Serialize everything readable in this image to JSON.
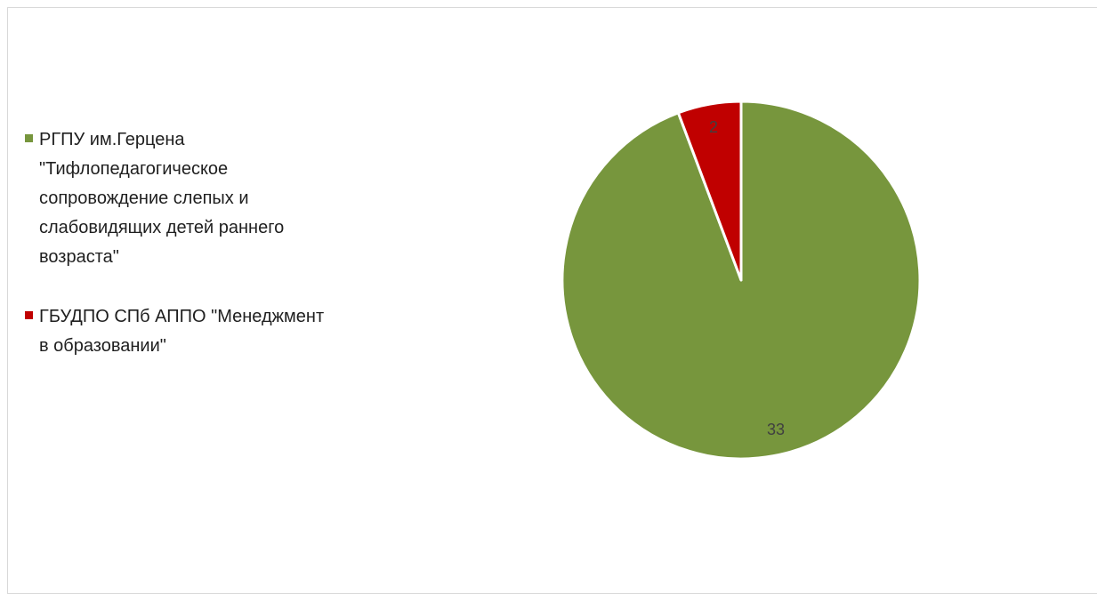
{
  "chart_data": {
    "type": "pie",
    "title": "",
    "categories": [
      "РГПУ им.Герцена \"Тифлопедагогическое сопровождение слепых и слабовидящих детей раннего возраста\"",
      "ГБУДПО СПб АППО \"Менеджмент в образовании\""
    ],
    "values": [
      33,
      2
    ],
    "data_labels": [
      "33",
      "2"
    ],
    "colors": [
      "#77963d",
      "#c00000"
    ],
    "legend_position": "left",
    "start_angle_deg": 0,
    "direction": "clockwise"
  },
  "legend": {
    "items": [
      {
        "label": "РГПУ им.Герцена\n\"Тифлопедагогическое\nсопровождение слепых и\nслабовидящих детей раннего\nвозраста\"",
        "color": "#77963d"
      },
      {
        "label": "ГБУДПО СПб АППО \"Менеджмент\nв образовании\"",
        "color": "#c00000"
      }
    ]
  }
}
